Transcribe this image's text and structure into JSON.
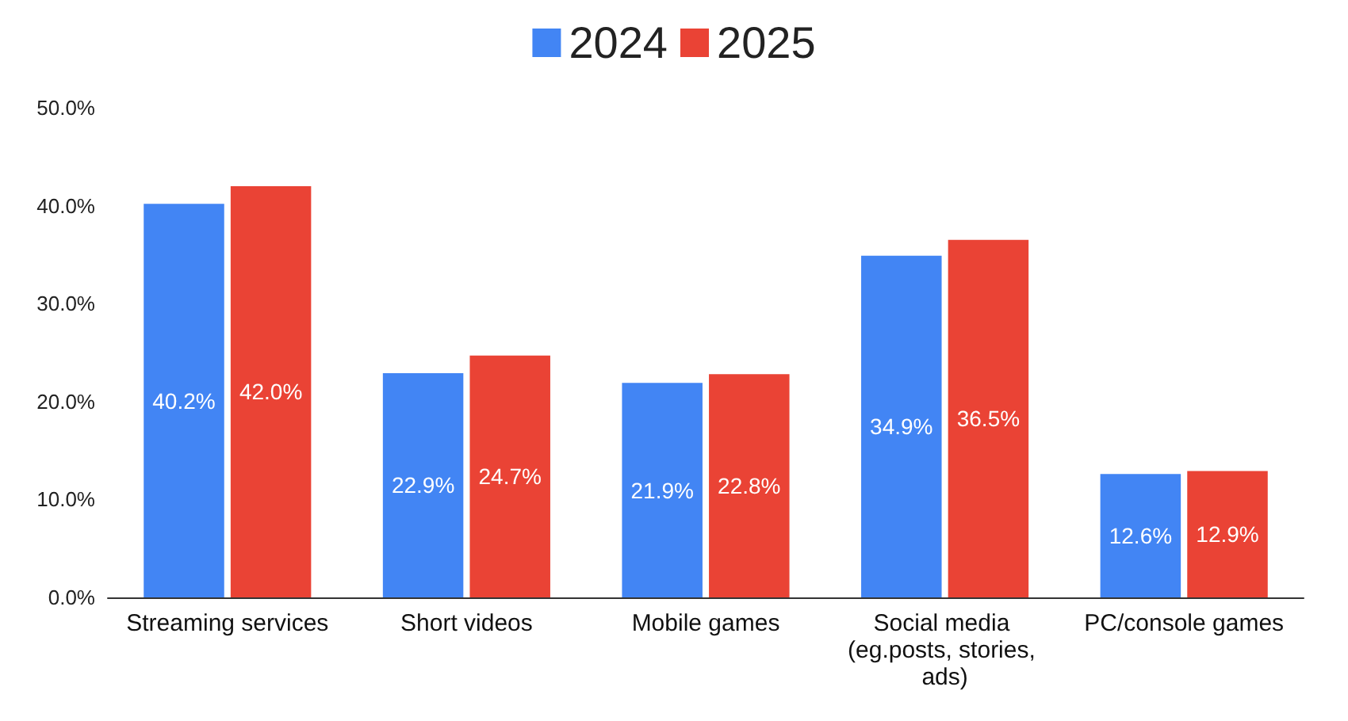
{
  "chart_data": {
    "type": "bar",
    "categories": [
      "Streaming services",
      "Short videos",
      "Mobile games",
      "Social media (eg.posts, stories, ads)",
      "PC/console games"
    ],
    "series": [
      {
        "name": "2024",
        "color": "#4285f4",
        "values": [
          40.2,
          22.9,
          21.9,
          34.9,
          12.6
        ],
        "value_labels": [
          "40.2%",
          "22.9%",
          "21.9%",
          "34.9%",
          "12.6%"
        ]
      },
      {
        "name": "2025",
        "color": "#ea4335",
        "values": [
          42.0,
          24.7,
          22.8,
          36.5,
          12.9
        ],
        "value_labels": [
          "42.0%",
          "24.7%",
          "22.8%",
          "36.5%",
          "12.9%"
        ]
      }
    ],
    "ylim": [
      0,
      50
    ],
    "yticks": [
      {
        "value": 0,
        "label": "0.0%"
      },
      {
        "value": 10,
        "label": "10.0%"
      },
      {
        "value": 20,
        "label": "20.0%"
      },
      {
        "value": 30,
        "label": "30.0%"
      },
      {
        "value": 40,
        "label": "40.0%"
      },
      {
        "value": 50,
        "label": "50.0%"
      }
    ],
    "legend": "top",
    "grid": false
  }
}
